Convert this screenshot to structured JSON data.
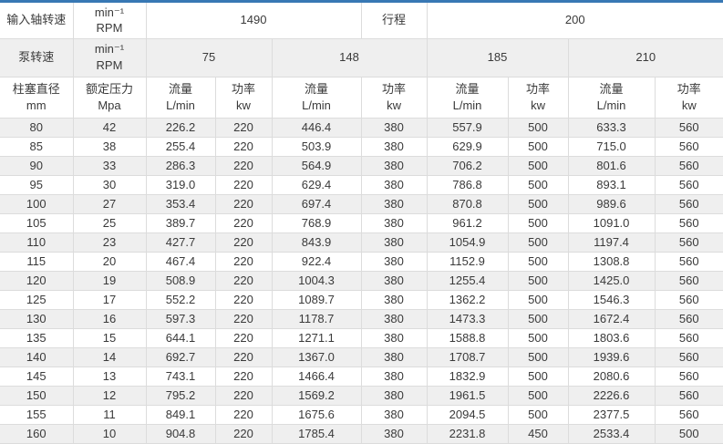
{
  "theme": {
    "accent_blue": "#3878b4",
    "stripe_gray": "#efefef",
    "border_gray": "#dcdcdc",
    "text_color": "#3a3a3a"
  },
  "table": {
    "row1": {
      "label_input_speed": "输入轴转速",
      "unit": "min⁻¹\nRPM",
      "input_speed_value": "1490",
      "label_stroke": "行程",
      "stroke_value": "200"
    },
    "row2": {
      "label_pump_speed": "泵转速",
      "unit": "min⁻¹\nRPM",
      "pump_speeds": [
        "75",
        "148",
        "185",
        "210"
      ]
    },
    "row3": {
      "plunger_diameter": "柱塞直径\nmm",
      "rated_pressure": "额定压力\nMpa",
      "flow": "流量\nL/min",
      "power": "功率\nkw"
    },
    "rows": [
      [
        "80",
        "42",
        "226.2",
        "220",
        "446.4",
        "380",
        "557.9",
        "500",
        "633.3",
        "560"
      ],
      [
        "85",
        "38",
        "255.4",
        "220",
        "503.9",
        "380",
        "629.9",
        "500",
        "715.0",
        "560"
      ],
      [
        "90",
        "33",
        "286.3",
        "220",
        "564.9",
        "380",
        "706.2",
        "500",
        "801.6",
        "560"
      ],
      [
        "95",
        "30",
        "319.0",
        "220",
        "629.4",
        "380",
        "786.8",
        "500",
        "893.1",
        "560"
      ],
      [
        "100",
        "27",
        "353.4",
        "220",
        "697.4",
        "380",
        "870.8",
        "500",
        "989.6",
        "560"
      ],
      [
        "105",
        "25",
        "389.7",
        "220",
        "768.9",
        "380",
        "961.2",
        "500",
        "1091.0",
        "560"
      ],
      [
        "110",
        "23",
        "427.7",
        "220",
        "843.9",
        "380",
        "1054.9",
        "500",
        "1197.4",
        "560"
      ],
      [
        "115",
        "20",
        "467.4",
        "220",
        "922.4",
        "380",
        "1152.9",
        "500",
        "1308.8",
        "560"
      ],
      [
        "120",
        "19",
        "508.9",
        "220",
        "1004.3",
        "380",
        "1255.4",
        "500",
        "1425.0",
        "560"
      ],
      [
        "125",
        "17",
        "552.2",
        "220",
        "1089.7",
        "380",
        "1362.2",
        "500",
        "1546.3",
        "560"
      ],
      [
        "130",
        "16",
        "597.3",
        "220",
        "1178.7",
        "380",
        "1473.3",
        "500",
        "1672.4",
        "560"
      ],
      [
        "135",
        "15",
        "644.1",
        "220",
        "1271.1",
        "380",
        "1588.8",
        "500",
        "1803.6",
        "560"
      ],
      [
        "140",
        "14",
        "692.7",
        "220",
        "1367.0",
        "380",
        "1708.7",
        "500",
        "1939.6",
        "560"
      ],
      [
        "145",
        "13",
        "743.1",
        "220",
        "1466.4",
        "380",
        "1832.9",
        "500",
        "2080.6",
        "560"
      ],
      [
        "150",
        "12",
        "795.2",
        "220",
        "1569.2",
        "380",
        "1961.5",
        "500",
        "2226.6",
        "560"
      ],
      [
        "155",
        "11",
        "849.1",
        "220",
        "1675.6",
        "380",
        "2094.5",
        "500",
        "2377.5",
        "560"
      ],
      [
        "160",
        "10",
        "904.8",
        "220",
        "1785.4",
        "380",
        "2231.8",
        "450",
        "2533.4",
        "500"
      ]
    ]
  }
}
